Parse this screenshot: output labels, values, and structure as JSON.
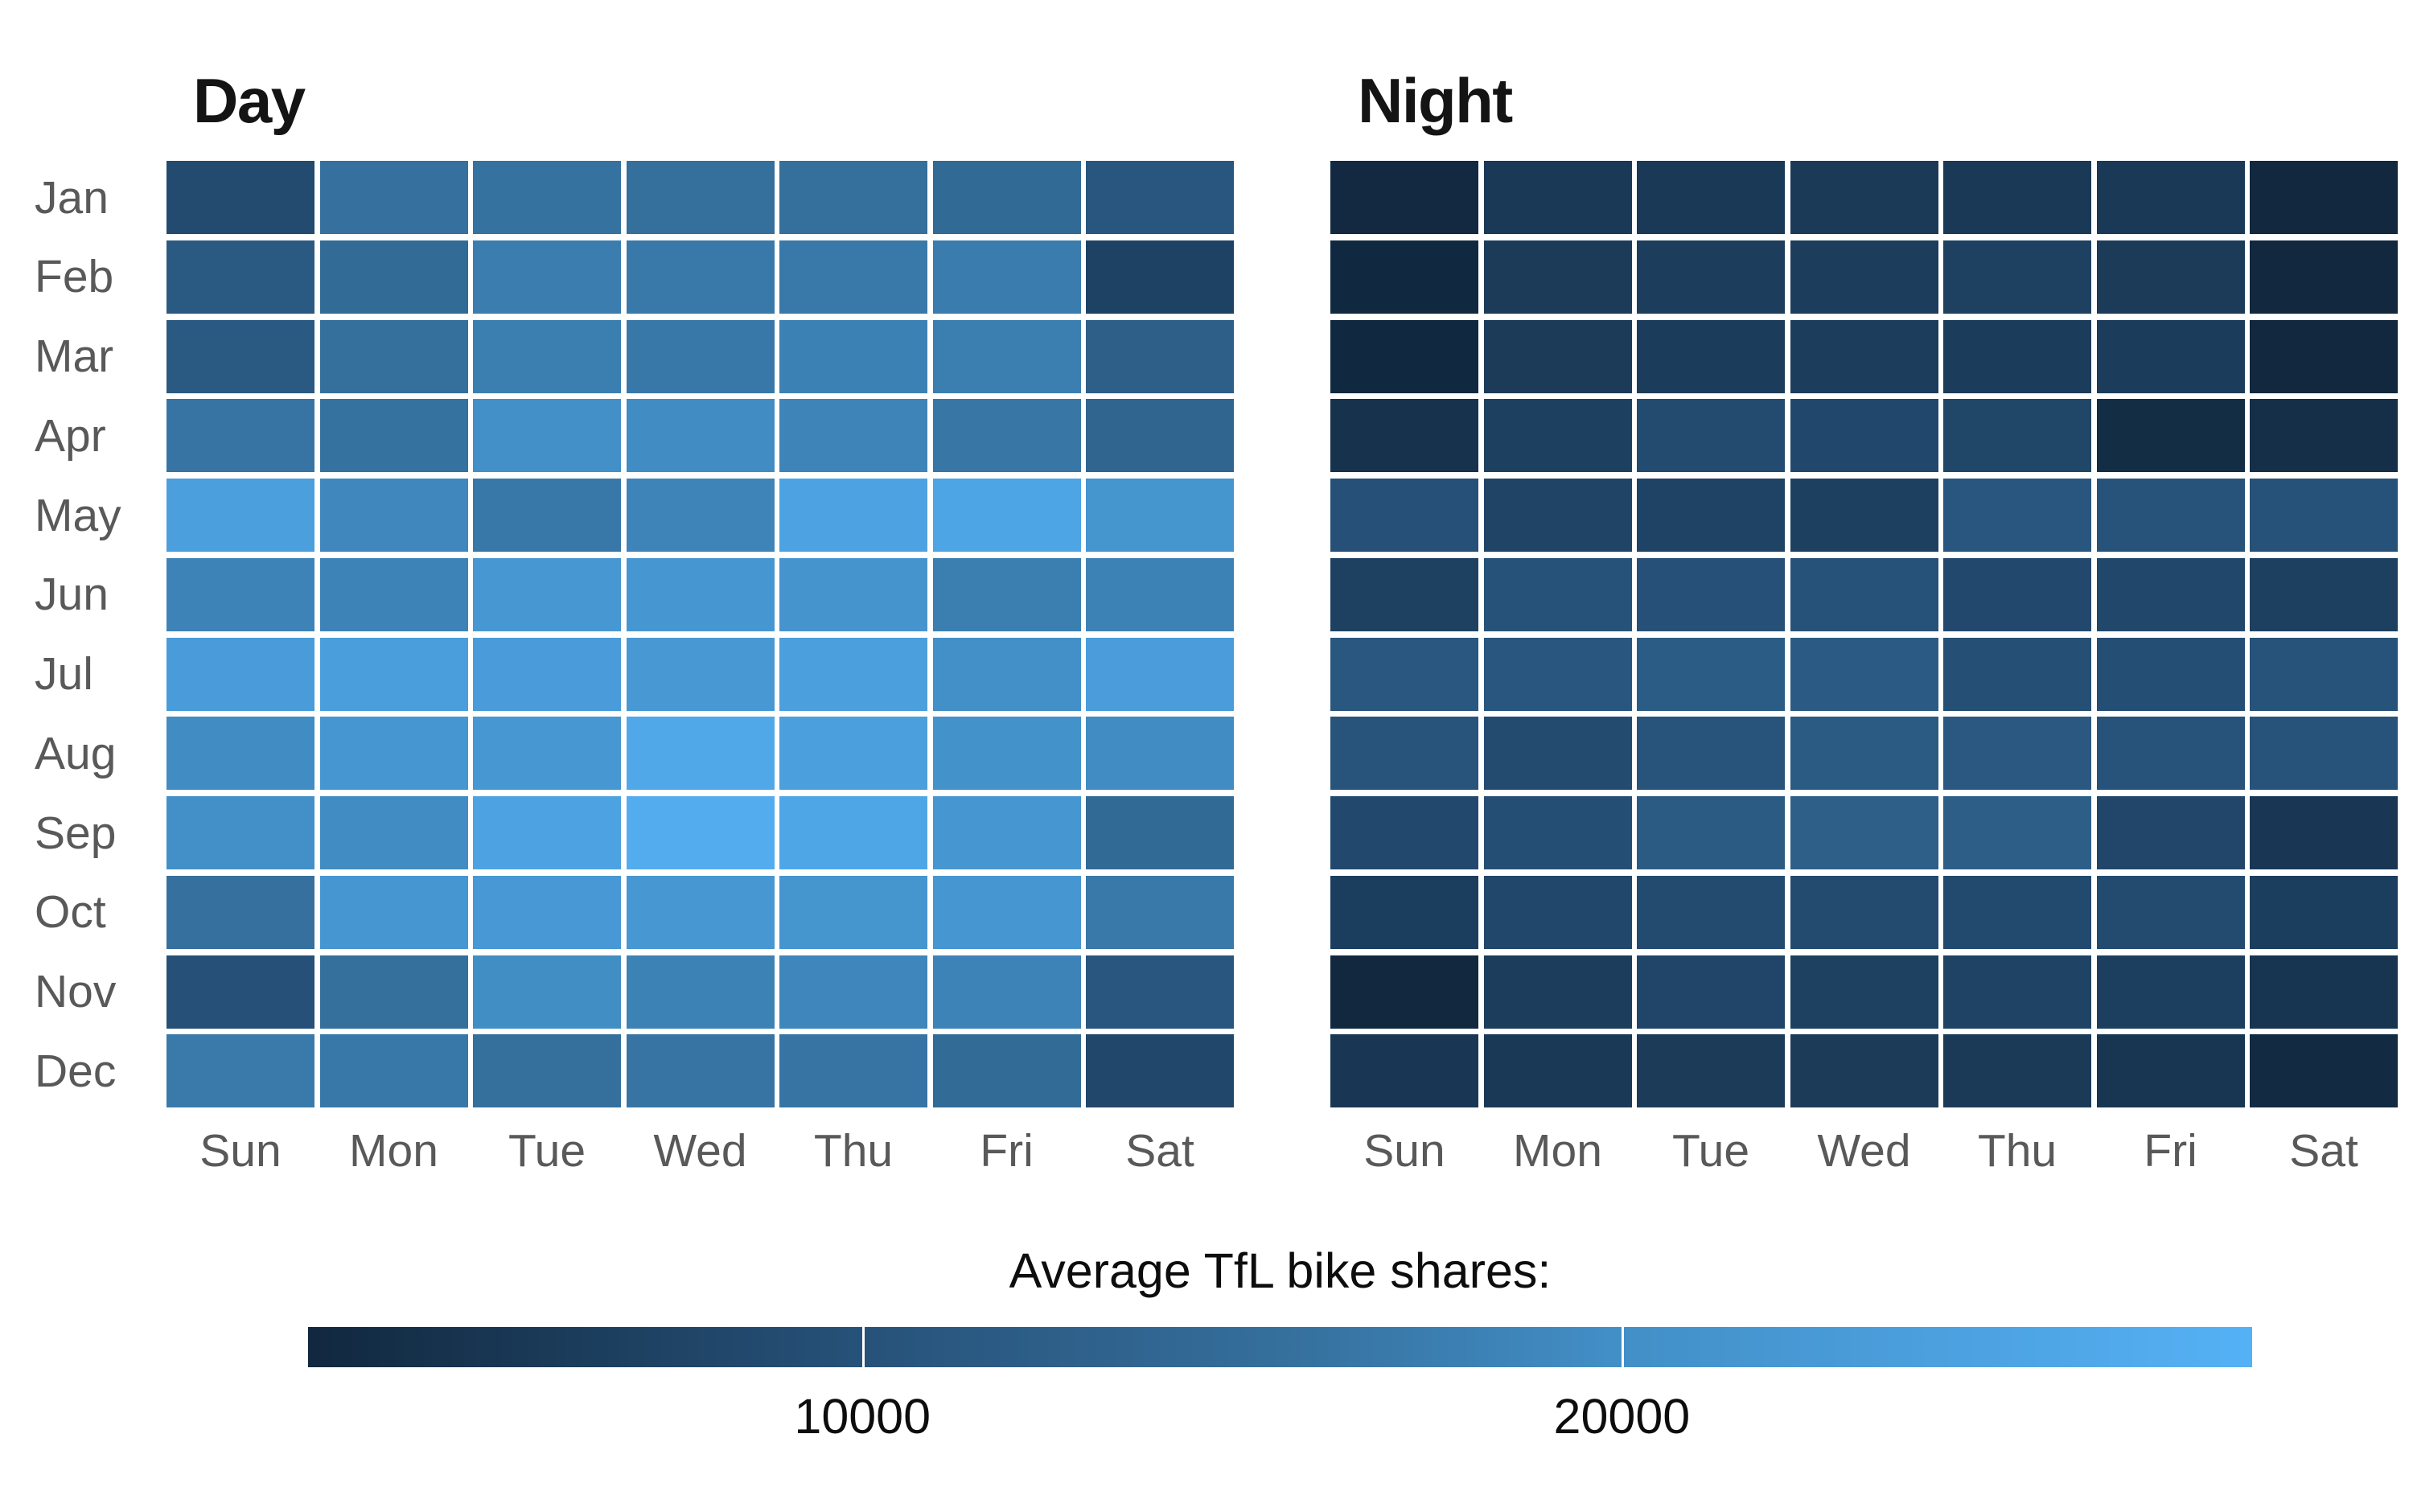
{
  "chart_data": {
    "type": "heatmap",
    "title": "",
    "rows": [
      "Jan",
      "Feb",
      "Mar",
      "Apr",
      "May",
      "Jun",
      "Jul",
      "Aug",
      "Sep",
      "Oct",
      "Nov",
      "Dec"
    ],
    "columns": [
      "Sun",
      "Mon",
      "Tue",
      "Wed",
      "Thu",
      "Fri",
      "Sat"
    ],
    "vmin": 2700,
    "vmax": 28300,
    "grid": "off",
    "legend": {
      "title": "Average TfL bike shares:",
      "position": "bottom",
      "ticks": [
        10000,
        20000
      ],
      "tick_labels": [
        "10000",
        "20000"
      ]
    },
    "colormap": {
      "stops": [
        {
          "f": 0.0,
          "color": "#11283f"
        },
        {
          "f": 0.28,
          "color": "#265178"
        },
        {
          "f": 0.5,
          "color": "#356f9c"
        },
        {
          "f": 0.675,
          "color": "#428fc7"
        },
        {
          "f": 1.0,
          "color": "#55b1f5"
        }
      ]
    },
    "panels": [
      {
        "title": "Day",
        "values": [
          [
            8700,
            15700,
            15900,
            15500,
            15500,
            14500,
            10800
          ],
          [
            11500,
            14700,
            17500,
            16900,
            16900,
            17300,
            7300
          ],
          [
            11400,
            15500,
            17600,
            16700,
            18000,
            17700,
            12500
          ],
          [
            16200,
            15900,
            20200,
            19500,
            18500,
            16500,
            13600
          ],
          [
            24000,
            18900,
            16700,
            18500,
            24900,
            25400,
            21500
          ],
          [
            18300,
            18300,
            21900,
            21700,
            21200,
            17600,
            18100
          ],
          [
            23200,
            23700,
            23200,
            22100,
            23800,
            20200,
            23400
          ],
          [
            19500,
            21700,
            21900,
            26000,
            23800,
            20600,
            19500
          ],
          [
            20200,
            19600,
            24700,
            27000,
            25700,
            21700,
            14500
          ],
          [
            15700,
            21700,
            22300,
            21900,
            21500,
            21700,
            16900
          ],
          [
            9700,
            15500,
            19800,
            18100,
            18700,
            18300,
            10800
          ],
          [
            17000,
            16700,
            15600,
            16200,
            16200,
            14700,
            8100
          ]
        ]
      },
      {
        "title": "Night",
        "values": [
          [
            2900,
            5600,
            5600,
            5800,
            5600,
            5600,
            2700
          ],
          [
            2800,
            6000,
            6400,
            6400,
            7000,
            6000,
            2700
          ],
          [
            2800,
            6000,
            6200,
            6400,
            6200,
            6200,
            2700
          ],
          [
            4400,
            6900,
            8700,
            8300,
            7900,
            3500,
            3900
          ],
          [
            9700,
            7600,
            7400,
            6900,
            10800,
            10200,
            10000
          ],
          [
            7100,
            10000,
            9700,
            9900,
            8500,
            8200,
            6900
          ],
          [
            11000,
            10800,
            11900,
            11700,
            9500,
            9400,
            10100
          ],
          [
            10500,
            8900,
            10500,
            11600,
            11200,
            10100,
            10300
          ],
          [
            8500,
            9400,
            11600,
            12500,
            12300,
            8000,
            5300
          ],
          [
            6600,
            8200,
            8900,
            8700,
            8600,
            8900,
            6600
          ],
          [
            2700,
            6400,
            7800,
            7100,
            7500,
            6700,
            4800
          ],
          [
            5300,
            5600,
            6000,
            6000,
            5800,
            5100,
            3100
          ]
        ]
      }
    ]
  }
}
